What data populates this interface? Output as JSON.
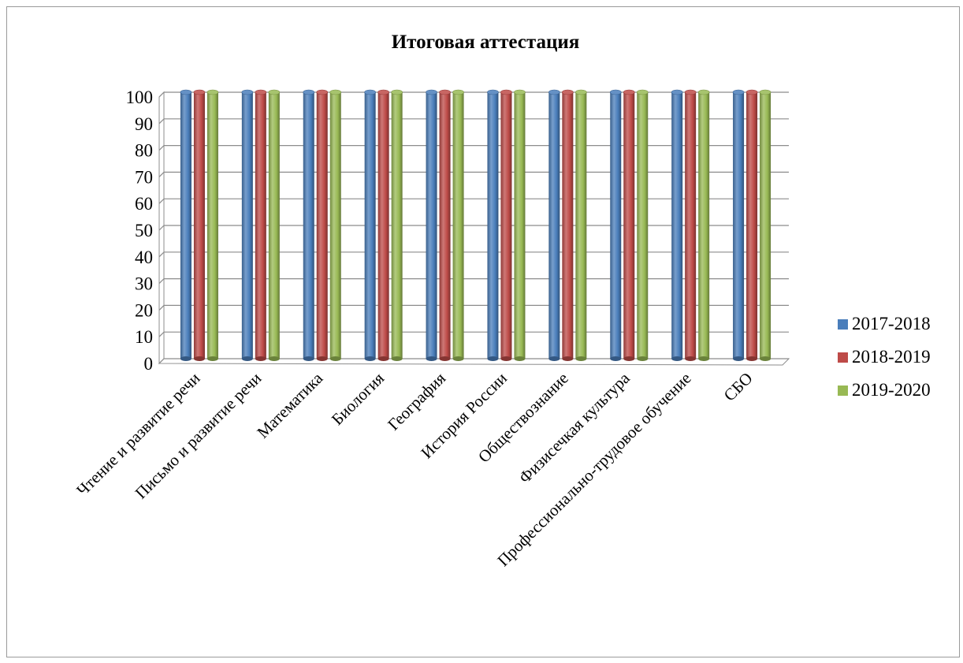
{
  "chart_data": {
    "type": "bar",
    "title": "Итоговая аттестация",
    "xlabel": "",
    "ylabel": "",
    "categories": [
      "Чтение и развитие речи",
      "Письмо и развитие речи",
      "Математика",
      "Биология",
      "География",
      "История России",
      "Обществознание",
      "Физисечкая культура",
      "Профессионально-трудовое обучение",
      "СБО"
    ],
    "series": [
      {
        "name": "2017-2018",
        "color": "#4a7ebb",
        "values": [
          100,
          100,
          100,
          100,
          100,
          100,
          100,
          100,
          100,
          100
        ]
      },
      {
        "name": "2018-2019",
        "color": "#be4b48",
        "values": [
          100,
          100,
          100,
          100,
          100,
          100,
          100,
          100,
          100,
          100
        ]
      },
      {
        "name": "2019-2020",
        "color": "#98b954",
        "values": [
          100,
          100,
          100,
          100,
          100,
          100,
          100,
          100,
          100,
          100
        ]
      }
    ],
    "ylim": [
      0,
      100
    ],
    "yticks": [
      "0",
      "10",
      "20",
      "30",
      "40",
      "50",
      "60",
      "70",
      "80",
      "90",
      "100"
    ],
    "grid": true,
    "legend": "right"
  }
}
